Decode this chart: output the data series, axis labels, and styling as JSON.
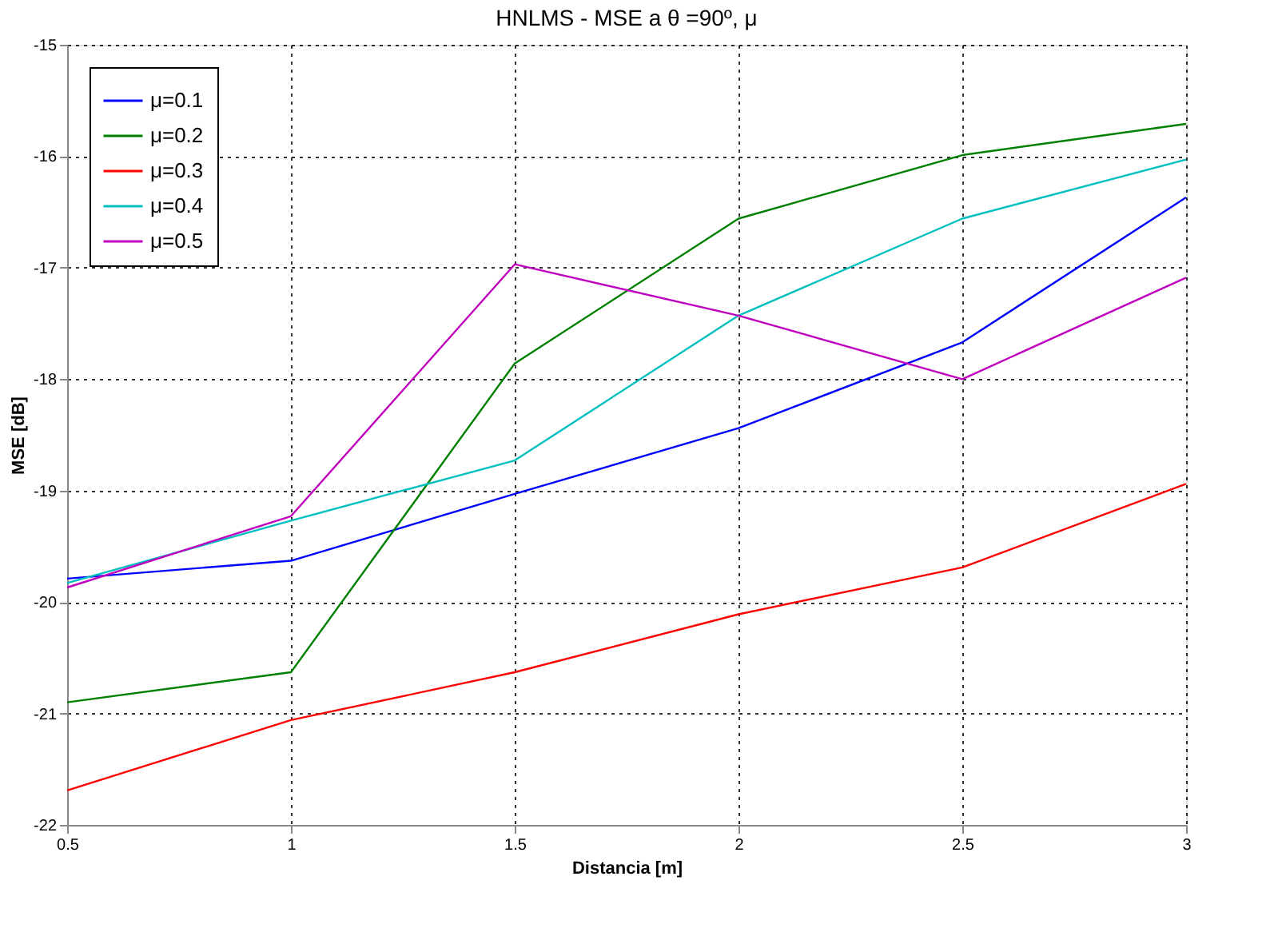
{
  "chart_data": {
    "type": "line",
    "title": "HNLMS - MSE a θ =90º, μ",
    "xlabel": "Distancia [m]",
    "ylabel": "MSE [dB]",
    "x": [
      0.5,
      1,
      1.5,
      2,
      2.5,
      3
    ],
    "series": [
      {
        "name": "μ=0.1",
        "color": "#0000ff",
        "values": [
          -19.79,
          -19.63,
          -19.03,
          -18.44,
          -17.67,
          -16.37
        ]
      },
      {
        "name": "μ=0.2",
        "color": "#008000",
        "values": [
          -20.9,
          -20.63,
          -17.86,
          -16.56,
          -15.99,
          -15.71
        ]
      },
      {
        "name": "μ=0.3",
        "color": "#ff0000",
        "values": [
          -21.69,
          -21.06,
          -20.63,
          -20.11,
          -19.69,
          -18.94
        ]
      },
      {
        "name": "μ=0.4",
        "color": "#00bfbf",
        "values": [
          -19.83,
          -19.27,
          -18.73,
          -17.43,
          -16.56,
          -16.03
        ]
      },
      {
        "name": "μ=0.5",
        "color": "#bf00bf",
        "values": [
          -19.87,
          -19.23,
          -16.97,
          -17.43,
          -18.0,
          -17.09
        ]
      }
    ],
    "xlim": [
      0.5,
      3
    ],
    "xticks": [
      0.5,
      1,
      1.5,
      2,
      2.5,
      3
    ],
    "ylim": [
      -22,
      -15
    ],
    "yticks": [
      -22,
      -21,
      -20,
      -19,
      -18,
      -17,
      -16,
      -15
    ],
    "grid": true,
    "legend": "top left",
    "marker": "none",
    "line_style": "solid"
  }
}
